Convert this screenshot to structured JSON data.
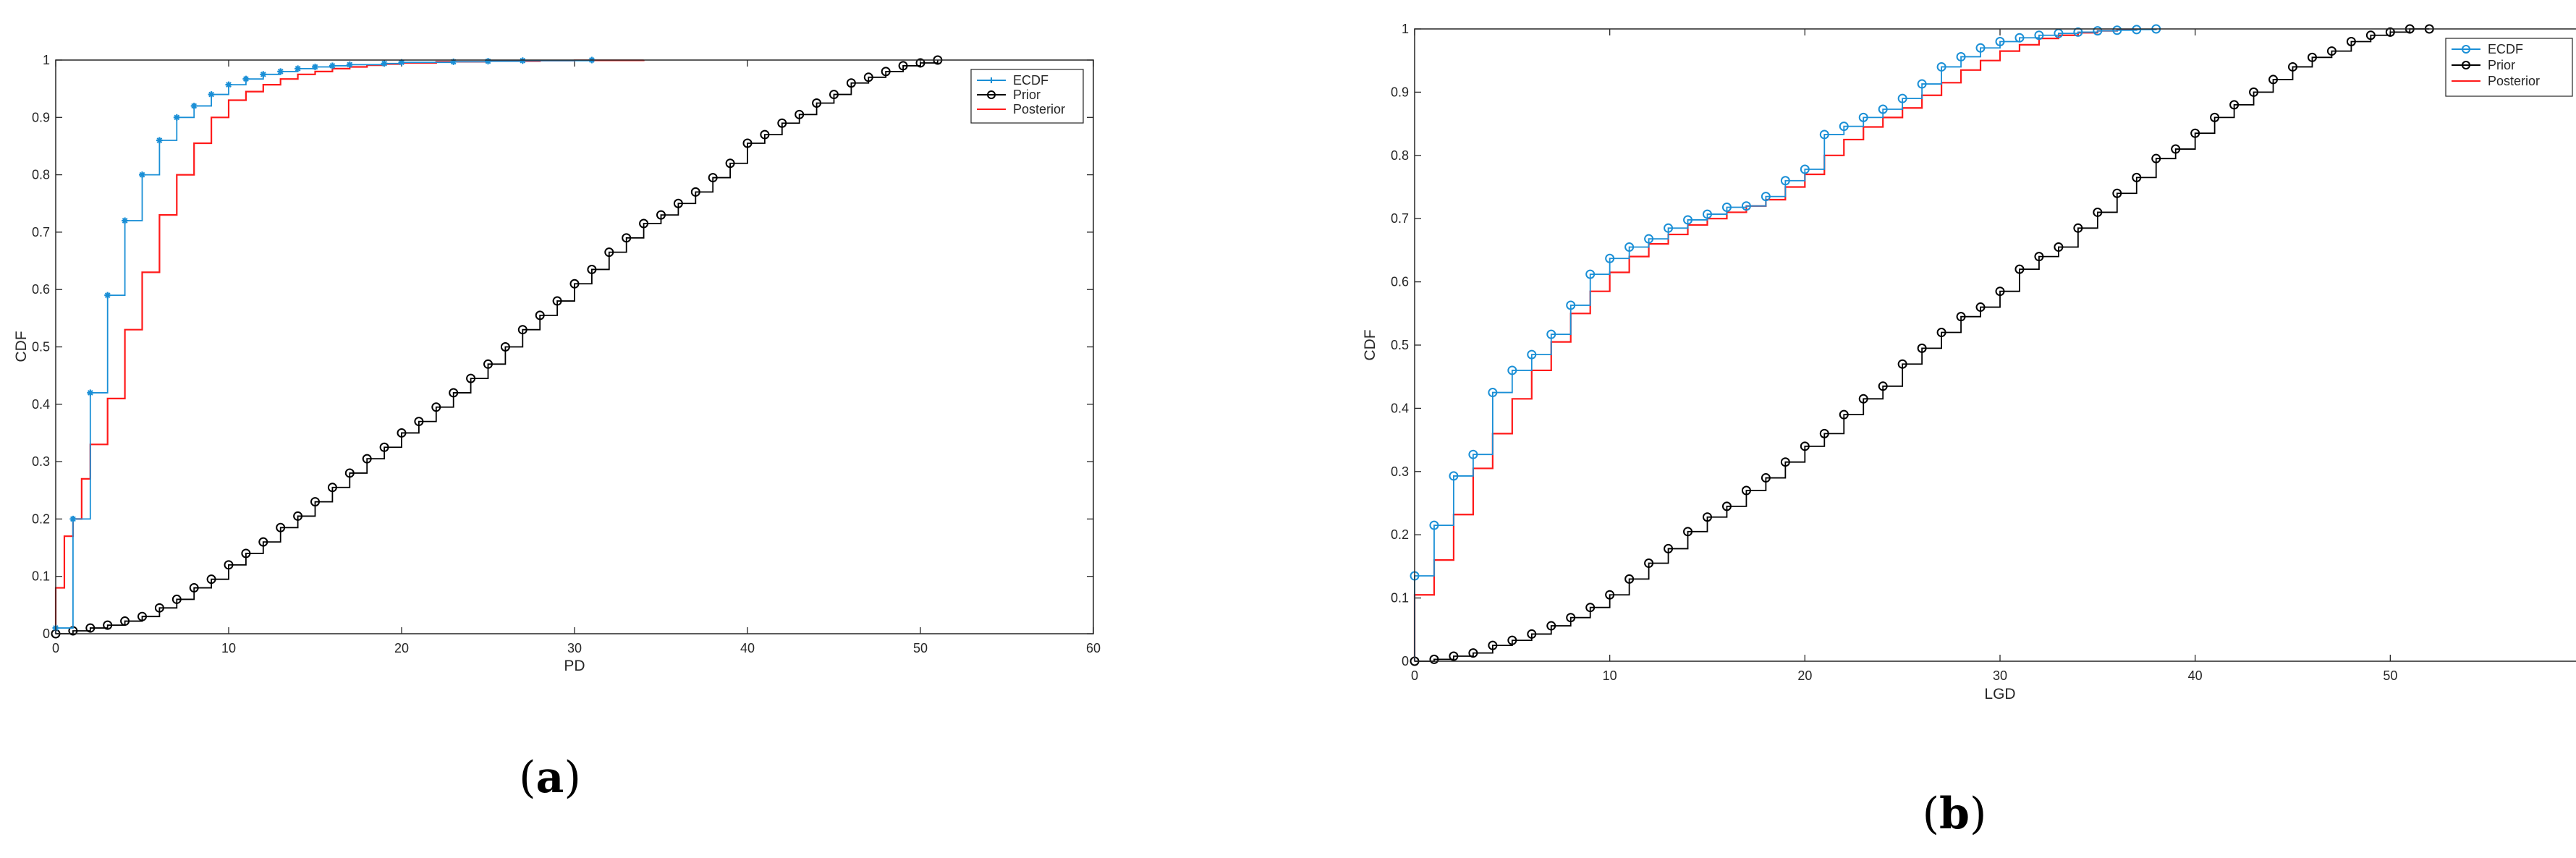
{
  "captions": [
    {
      "open": "(",
      "letter": "a",
      "close": ")"
    },
    {
      "open": "(",
      "letter": "b",
      "close": ")"
    }
  ],
  "colors": {
    "ECDF": "#1a8fd6",
    "Prior": "#000000",
    "Posterior": "#ff1a1a"
  },
  "chart_data": [
    {
      "type": "line",
      "subtype": "step-cdf",
      "title": "",
      "xlabel": "PD",
      "ylabel": "CDF",
      "xlim": [
        0,
        60
      ],
      "ylim": [
        0,
        1
      ],
      "xticks": [
        0,
        10,
        20,
        30,
        40,
        50,
        60
      ],
      "yticks": [
        0,
        0.1,
        0.2,
        0.3,
        0.4,
        0.5,
        0.6,
        0.7,
        0.8,
        0.9,
        1
      ],
      "ytick_labels": [
        "0",
        "0.1",
        "0.2",
        "0.3",
        "0.4",
        "0.5",
        "0.6",
        "0.7",
        "0.8",
        "0.9",
        "1"
      ],
      "grid": false,
      "legend_position": "top-right",
      "series": [
        {
          "name": "ECDF",
          "marker": "asterisk",
          "x": [
            0,
            1,
            2,
            3,
            4,
            5,
            6,
            7,
            8,
            9,
            10,
            11,
            12,
            13,
            14,
            15,
            16,
            17,
            19,
            20,
            23,
            25,
            27,
            31
          ],
          "y": [
            0.01,
            0.2,
            0.42,
            0.59,
            0.72,
            0.8,
            0.86,
            0.9,
            0.92,
            0.94,
            0.957,
            0.967,
            0.975,
            0.98,
            0.985,
            0.988,
            0.99,
            0.992,
            0.994,
            0.996,
            0.997,
            0.998,
            0.999,
            1.0
          ]
        },
        {
          "name": "Prior",
          "marker": "circle",
          "x": [
            0,
            1,
            2,
            3,
            4,
            5,
            6,
            7,
            8,
            9,
            10,
            11,
            12,
            13,
            14,
            15,
            16,
            17,
            18,
            19,
            20,
            21,
            22,
            23,
            24,
            25,
            26,
            27,
            28,
            29,
            30,
            31,
            32,
            33,
            34,
            35,
            36,
            37,
            38,
            39,
            40,
            41,
            42,
            43,
            44,
            45,
            46,
            47,
            48,
            49,
            50,
            51
          ],
          "y": [
            0,
            0.005,
            0.01,
            0.015,
            0.022,
            0.03,
            0.045,
            0.06,
            0.08,
            0.095,
            0.12,
            0.14,
            0.16,
            0.185,
            0.205,
            0.23,
            0.255,
            0.28,
            0.305,
            0.325,
            0.35,
            0.37,
            0.395,
            0.42,
            0.445,
            0.47,
            0.5,
            0.53,
            0.555,
            0.58,
            0.61,
            0.635,
            0.665,
            0.69,
            0.715,
            0.73,
            0.75,
            0.77,
            0.795,
            0.82,
            0.855,
            0.87,
            0.89,
            0.905,
            0.925,
            0.94,
            0.96,
            0.97,
            0.98,
            0.99,
            0.995,
            1.0
          ]
        },
        {
          "name": "Posterior",
          "marker": "none",
          "x": [
            0,
            0.5,
            1,
            1.5,
            2,
            3,
            4,
            5,
            6,
            7,
            8,
            9,
            10,
            11,
            12,
            13,
            14,
            15,
            16,
            17,
            18,
            19,
            20,
            22,
            25,
            28,
            30,
            34
          ],
          "y": [
            0.08,
            0.17,
            0.2,
            0.27,
            0.33,
            0.41,
            0.53,
            0.63,
            0.73,
            0.8,
            0.855,
            0.9,
            0.93,
            0.945,
            0.957,
            0.967,
            0.975,
            0.98,
            0.985,
            0.988,
            0.991,
            0.993,
            0.995,
            0.997,
            0.998,
            0.999,
            0.9995,
            1.0
          ]
        }
      ]
    },
    {
      "type": "line",
      "subtype": "step-cdf",
      "title": "",
      "xlabel": "LGD",
      "ylabel": "CDF",
      "xlim": [
        0,
        60
      ],
      "ylim": [
        0,
        1
      ],
      "xticks": [
        0,
        10,
        20,
        30,
        40,
        50,
        60
      ],
      "yticks": [
        0,
        0.1,
        0.2,
        0.3,
        0.4,
        0.5,
        0.6,
        0.7,
        0.8,
        0.9,
        1
      ],
      "ytick_labels": [
        "0",
        "0.1",
        "0.2",
        "0.3",
        "0.4",
        "0.5",
        "0.6",
        "0.7",
        "0.8",
        "0.9",
        "1"
      ],
      "grid": false,
      "legend_position": "top-right",
      "series": [
        {
          "name": "ECDF",
          "marker": "circle",
          "x": [
            0,
            1,
            2,
            3,
            4,
            5,
            6,
            7,
            8,
            9,
            10,
            11,
            12,
            13,
            14,
            15,
            16,
            17,
            18,
            19,
            20,
            21,
            22,
            23,
            24,
            25,
            26,
            27,
            28,
            29,
            30,
            31,
            32,
            33,
            34,
            35,
            36,
            37,
            38
          ],
          "y": [
            0.135,
            0.215,
            0.293,
            0.327,
            0.425,
            0.46,
            0.485,
            0.517,
            0.563,
            0.612,
            0.637,
            0.655,
            0.668,
            0.685,
            0.698,
            0.707,
            0.718,
            0.72,
            0.735,
            0.76,
            0.778,
            0.833,
            0.846,
            0.86,
            0.873,
            0.89,
            0.913,
            0.94,
            0.956,
            0.97,
            0.98,
            0.986,
            0.99,
            0.993,
            0.995,
            0.997,
            0.998,
            0.999,
            1.0
          ]
        },
        {
          "name": "Prior",
          "marker": "circle",
          "x": [
            0,
            1,
            2,
            3,
            4,
            5,
            6,
            7,
            8,
            9,
            10,
            11,
            12,
            13,
            14,
            15,
            16,
            17,
            18,
            19,
            20,
            21,
            22,
            23,
            24,
            25,
            26,
            27,
            28,
            29,
            30,
            31,
            32,
            33,
            34,
            35,
            36,
            37,
            38,
            39,
            40,
            41,
            42,
            43,
            44,
            45,
            46,
            47,
            48,
            49,
            50,
            51,
            52
          ],
          "y": [
            0,
            0.003,
            0.008,
            0.013,
            0.025,
            0.033,
            0.043,
            0.056,
            0.069,
            0.085,
            0.105,
            0.13,
            0.155,
            0.178,
            0.205,
            0.228,
            0.245,
            0.27,
            0.29,
            0.315,
            0.34,
            0.36,
            0.39,
            0.415,
            0.435,
            0.47,
            0.495,
            0.52,
            0.545,
            0.56,
            0.585,
            0.62,
            0.64,
            0.655,
            0.685,
            0.71,
            0.74,
            0.765,
            0.795,
            0.81,
            0.835,
            0.86,
            0.88,
            0.9,
            0.92,
            0.94,
            0.955,
            0.965,
            0.98,
            0.99,
            0.995,
            1.0,
            1.0
          ]
        },
        {
          "name": "Posterior",
          "marker": "none",
          "x": [
            0,
            1,
            2,
            3,
            4,
            5,
            6,
            7,
            8,
            9,
            10,
            11,
            12,
            13,
            14,
            15,
            16,
            17,
            18,
            19,
            20,
            21,
            22,
            23,
            24,
            25,
            26,
            27,
            28,
            29,
            30,
            31,
            32,
            33,
            34,
            35,
            36,
            37
          ],
          "y": [
            0.105,
            0.16,
            0.232,
            0.305,
            0.36,
            0.415,
            0.46,
            0.505,
            0.55,
            0.585,
            0.615,
            0.64,
            0.66,
            0.675,
            0.69,
            0.7,
            0.71,
            0.72,
            0.73,
            0.75,
            0.77,
            0.8,
            0.825,
            0.845,
            0.86,
            0.875,
            0.895,
            0.915,
            0.935,
            0.95,
            0.965,
            0.975,
            0.985,
            0.99,
            0.994,
            0.997,
            0.999,
            1.0
          ]
        }
      ]
    }
  ]
}
